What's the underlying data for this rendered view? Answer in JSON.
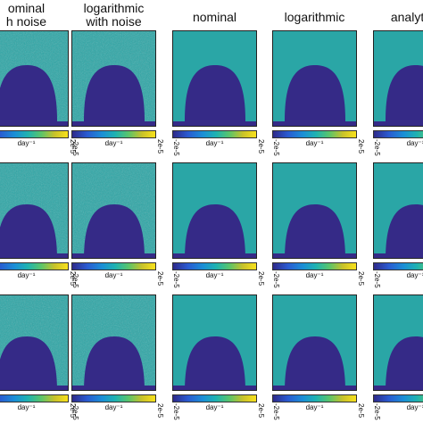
{
  "columns": [
    {
      "title_lines": [
        "nominal",
        "with noise"
      ],
      "title_display": [
        "ominal",
        "h noise"
      ],
      "noise": true
    },
    {
      "title_lines": [
        "logarithmic",
        "with noise"
      ],
      "title_display": [
        "logarithmic",
        "with noise"
      ],
      "noise": true
    },
    {
      "title_lines": [
        "nominal"
      ],
      "title_display": [
        "nominal"
      ],
      "noise": false
    },
    {
      "title_lines": [
        "logarithmic"
      ],
      "title_display": [
        "logarithmic"
      ],
      "noise": false
    },
    {
      "title_lines": [
        "analytical"
      ],
      "title_display": [
        "analytica"
      ],
      "noise": false
    }
  ],
  "rows": 3,
  "colorbar": {
    "unit_label": "day⁻¹",
    "low_label": "-2e-5",
    "high_label": "2e-5"
  },
  "colors": {
    "background_field": "#2aa6a6",
    "body": "#352a87",
    "positive": "#f9e11c",
    "negative": "#2a3fbf",
    "frame": "#222222"
  }
}
